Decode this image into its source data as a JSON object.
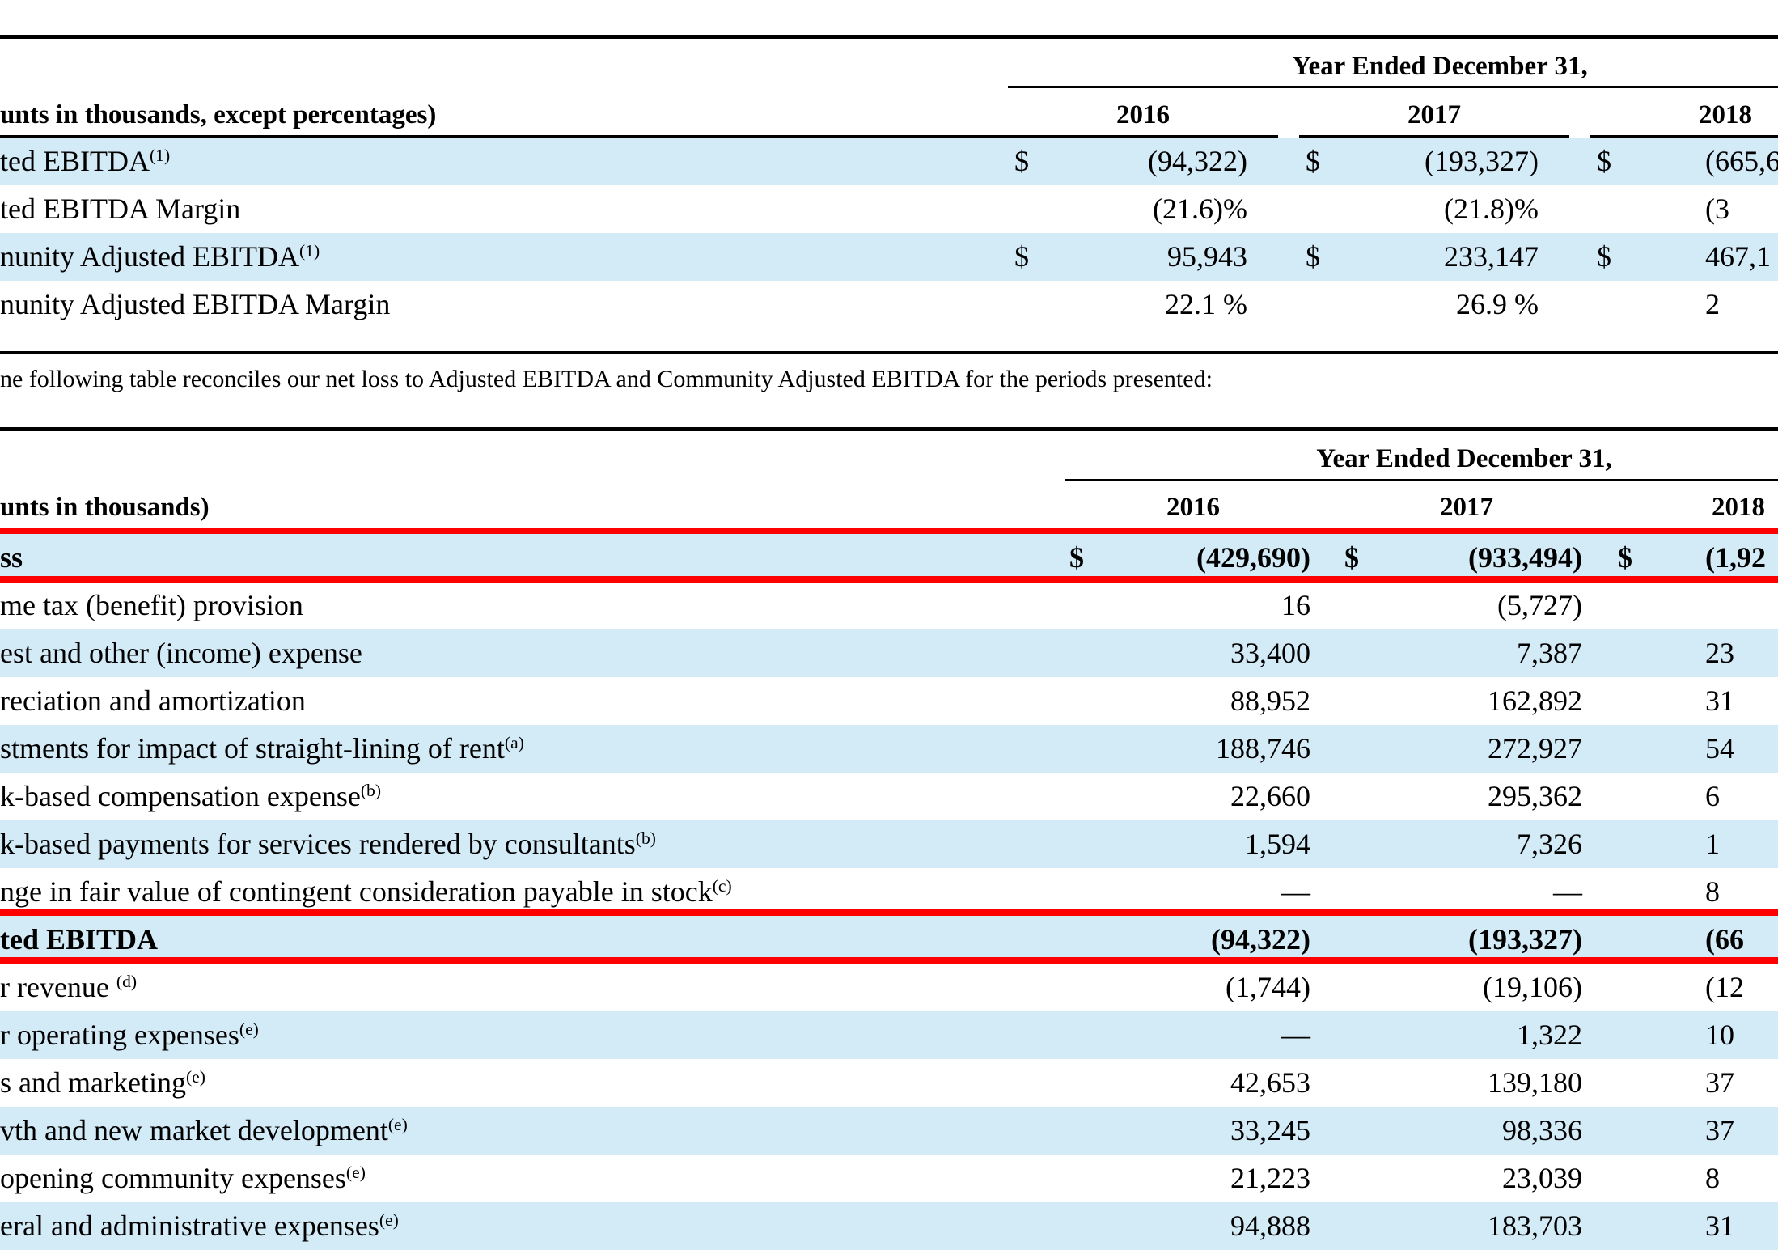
{
  "table1": {
    "group_header": "Year Ended December 31,",
    "units_label": "unts in thousands, except percentages)",
    "years": [
      "2016",
      "2017",
      "2018"
    ],
    "rows": [
      {
        "label": "ted EBITDA",
        "sup": "(1)",
        "currency": "$",
        "values": [
          "(94,322)",
          "(193,327)",
          "(665,6"
        ]
      },
      {
        "label": "ted EBITDA Margin",
        "sup": "",
        "currency": "",
        "values": [
          "(21.6)%",
          "(21.8)%",
          "(3"
        ]
      },
      {
        "label": "nunity Adjusted EBITDA",
        "sup": "(1)",
        "currency": "$",
        "values": [
          "95,943",
          "233,147",
          "467,1"
        ]
      },
      {
        "label": "nunity Adjusted EBITDA Margin",
        "sup": "",
        "currency": "",
        "values": [
          "22.1 %",
          "26.9 %",
          "2"
        ]
      }
    ]
  },
  "reconcile_note": "ne following table reconciles our net loss to Adjusted EBITDA and Community Adjusted EBITDA for the periods presented:",
  "table2": {
    "group_header": "Year Ended December 31,",
    "units_label": "unts in thousands)",
    "years": [
      "2016",
      "2017",
      "2018"
    ],
    "rows": [
      {
        "label": "ss",
        "sup": "",
        "bold": true,
        "currency": "$",
        "values": [
          "(429,690)",
          "(933,494)",
          "(1,92"
        ]
      },
      {
        "label": "me tax (benefit) provision",
        "sup": "",
        "bold": false,
        "currency": "",
        "values": [
          "16",
          "(5,727)",
          ""
        ]
      },
      {
        "label": "est and other (income) expense",
        "sup": "",
        "bold": false,
        "currency": "",
        "values": [
          "33,400",
          "7,387",
          "23"
        ]
      },
      {
        "label": "reciation and amortization",
        "sup": "",
        "bold": false,
        "currency": "",
        "values": [
          "88,952",
          "162,892",
          "31"
        ]
      },
      {
        "label": "stments for impact of straight-lining of rent",
        "sup": "(a)",
        "bold": false,
        "currency": "",
        "values": [
          "188,746",
          "272,927",
          "54"
        ]
      },
      {
        "label": "k-based compensation expense",
        "sup": "(b)",
        "bold": false,
        "currency": "",
        "values": [
          "22,660",
          "295,362",
          "6"
        ]
      },
      {
        "label": "k-based payments for services rendered by consultants",
        "sup": "(b)",
        "bold": false,
        "currency": "",
        "values": [
          "1,594",
          "7,326",
          "1"
        ]
      },
      {
        "label": "nge in fair value of contingent consideration payable in stock",
        "sup": "(c)",
        "bold": false,
        "currency": "",
        "values": [
          "—",
          "—",
          "8"
        ]
      },
      {
        "label": "ted EBITDA",
        "sup": "",
        "bold": true,
        "currency": "",
        "values": [
          "(94,322)",
          "(193,327)",
          "(66"
        ]
      },
      {
        "label": "r revenue ",
        "sup": "(d)",
        "bold": false,
        "currency": "",
        "values": [
          "(1,744)",
          "(19,106)",
          "(12"
        ]
      },
      {
        "label": "r operating expenses",
        "sup": "(e)",
        "bold": false,
        "currency": "",
        "values": [
          "—",
          "1,322",
          "10"
        ]
      },
      {
        "label": "s and marketing",
        "sup": "(e)",
        "bold": false,
        "currency": "",
        "values": [
          "42,653",
          "139,180",
          "37"
        ]
      },
      {
        "label": "vth and new market development",
        "sup": "(e)",
        "bold": false,
        "currency": "",
        "values": [
          "33,245",
          "98,336",
          "37"
        ]
      },
      {
        "label": "opening community expenses",
        "sup": "(e)",
        "bold": false,
        "currency": "",
        "values": [
          "21,223",
          "23,039",
          "8"
        ]
      },
      {
        "label": "eral and administrative expenses",
        "sup": "(e)",
        "bold": false,
        "currency": "",
        "values": [
          "94,888",
          "183,703",
          "31"
        ]
      }
    ]
  },
  "colors": {
    "row_shade": "#d3eaf7",
    "highlight_line": "#ff0000"
  }
}
